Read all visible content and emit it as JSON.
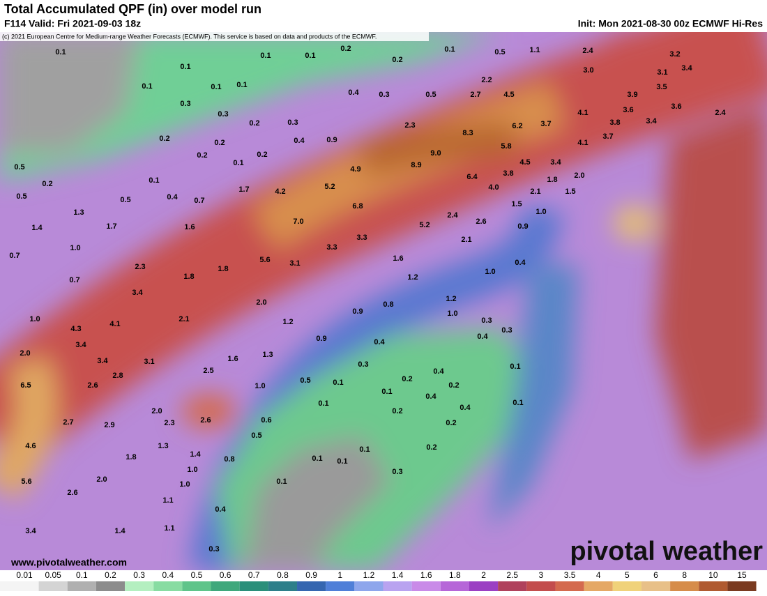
{
  "header": {
    "title": "Total Accumulated QPF (in) over model run",
    "valid": "F114 Valid: Fri 2021-09-03 18z",
    "init": "Init: Mon 2021-08-30 00z ECMWF Hi-Res",
    "copyright": "(c) 2021 European Centre for Medium-range Weather Forecasts (ECMWF). This service is based on data and products of the ECMWF."
  },
  "map": {
    "labels": [
      "0.1",
      "0.1",
      "0.1",
      "0.2",
      "0.2",
      "0.1",
      "0.5",
      "1.1",
      "2.4",
      "3.2",
      "0.1",
      "3.0",
      "3.4",
      "3.1",
      "2.2",
      "0.1",
      "0.1",
      "0.1",
      "3.5",
      "0.4",
      "0.3",
      "0.5",
      "2.7",
      "4.5",
      "3.9",
      "0.3",
      "3.6",
      "3.6",
      "0.3",
      "4.1",
      "2.4",
      "0.2",
      "0.3",
      "2.3",
      "8.3",
      "6.2",
      "3.7",
      "3.8",
      "3.4",
      "0.2",
      "0.4",
      "0.9",
      "3.7",
      "0.2",
      "5.8",
      "0.2",
      "0.1",
      "0.2",
      "9.0",
      "4.1",
      "4.5",
      "3.4",
      "0.5",
      "4.9",
      "8.9",
      "3.8",
      "2.0",
      "0.2",
      "0.1",
      "6.4",
      "1.8",
      "5.2",
      "4.0",
      "1.7",
      "4.2",
      "2.1",
      "1.5",
      "0.5",
      "0.5",
      "0.4",
      "0.7",
      "6.8",
      "1.5",
      "1.0",
      "1.3",
      "2.4",
      "2.6",
      "7.0",
      "5.2",
      "0.9",
      "1.4",
      "1.7",
      "1.6",
      "3.3",
      "2.1",
      "3.3",
      "1.0",
      "0.7",
      "5.6",
      "3.1",
      "1.6",
      "0.4",
      "2.3",
      "1.8",
      "1.0",
      "0.7",
      "1.8",
      "1.2",
      "3.4",
      "2.0",
      "0.8",
      "1.2",
      "0.9",
      "1.0",
      "1.0",
      "4.1",
      "2.1",
      "1.2",
      "0.3",
      "0.3",
      "4.3",
      "0.9",
      "0.4",
      "0.4",
      "3.4",
      "2.0",
      "1.3",
      "1.6",
      "3.4",
      "3.1",
      "0.3",
      "0.1",
      "2.8",
      "2.5",
      "0.5",
      "0.2",
      "0.4",
      "0.1",
      "6.5",
      "2.6",
      "1.0",
      "0.1",
      "0.2",
      "0.4",
      "0.4",
      "0.1",
      "0.1",
      "2.0",
      "0.2",
      "2.7",
      "2.9",
      "2.3",
      "2.6",
      "0.6",
      "0.2",
      "0.5",
      "4.6",
      "1.3",
      "0.2",
      "0.1",
      "1.4",
      "1.8",
      "0.8",
      "0.1",
      "0.1",
      "1.0",
      "0.3",
      "2.0",
      "5.6",
      "1.0",
      "0.1",
      "2.6",
      "1.1",
      "0.4",
      "1.1",
      "1.4",
      "3.4",
      "0.3"
    ]
  },
  "footer": {
    "url": "www.pivotalweather.com",
    "logo": "pivotal weather"
  },
  "legend": {
    "ticks": [
      "0.01",
      "0.05",
      "0.1",
      "0.2",
      "0.3",
      "0.4",
      "0.5",
      "0.6",
      "0.7",
      "0.8",
      "0.9",
      "1",
      "1.2",
      "1.4",
      "1.6",
      "1.8",
      "2",
      "2.5",
      "3",
      "3.5",
      "4",
      "5",
      "6",
      "8",
      "10",
      "15"
    ],
    "colors": [
      "#f4f4f4",
      "#d4d4d4",
      "#b0b0b0",
      "#8c8c8c",
      "#b4efc0",
      "#88dca2",
      "#5fc48a",
      "#3fa87c",
      "#2a8f7a",
      "#2d7f8a",
      "#3566b0",
      "#4f7fd8",
      "#8ea6ec",
      "#b9a3f0",
      "#c98be8",
      "#b666d8",
      "#9b3fc3",
      "#b0415c",
      "#c34d4d",
      "#d46a4e",
      "#e5a865",
      "#f0d27a",
      "#e8c088",
      "#d68c4a",
      "#b05a30",
      "#7a3a20"
    ]
  }
}
